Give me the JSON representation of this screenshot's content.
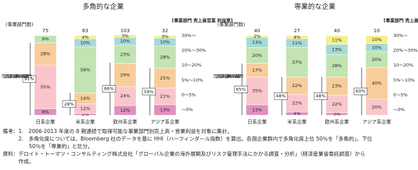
{
  "charts": [
    {
      "type": "bar",
      "stacked": true,
      "title": "多角的な企業",
      "ylabel": "(事業部門数)",
      "legend_title": "[事業部門 売上高営業 利益率]",
      "annotation": "売上高営業利益率 10% 未満の事業部門",
      "categories": [
        "日系企業",
        "米系企業",
        "欧州系企業",
        "アジア系企業"
      ],
      "counts": [
        75,
        83,
        103,
        32
      ],
      "ylim": [
        0,
        100
      ],
      "bracket": {
        "values": [
          91,
          28,
          66,
          59
        ],
        "value_labels": [
          "91%",
          "28%",
          "66%",
          "59%"
        ]
      },
      "series": [
        {
          "name": "〜0%",
          "color": "#df8fc0",
          "values": [
            8,
            2,
            12,
            13
          ],
          "value_labels": [
            "8%",
            "2%",
            "12%",
            "13%"
          ]
        },
        {
          "name": "0〜5%",
          "color": "#f8c6cc",
          "values": [
            55,
            12,
            24,
            21
          ],
          "value_labels": [
            "55%",
            "12%",
            "24%",
            "21%"
          ]
        },
        {
          "name": "5%〜10%",
          "color": "#f8cd9c",
          "values": [
            28,
            14,
            29,
            25
          ],
          "value_labels": [
            "28%",
            "14%",
            "29%",
            "25%"
          ]
        },
        {
          "name": "10〜20%",
          "color": "#c2e3b2",
          "values": [
            9,
            58,
            23,
            28
          ],
          "value_labels": [
            "9%",
            "58%",
            "23%",
            "28%"
          ]
        },
        {
          "name": "20%〜30%",
          "color": "#a8dad4",
          "values": [
            0,
            10,
            10,
            10
          ],
          "value_labels": [
            "0%",
            "10%",
            "10%",
            "10%"
          ]
        },
        {
          "name": "30%〜",
          "color": "#f5ef8a",
          "values": [
            0,
            4,
            3,
            3
          ],
          "value_labels": [
            "0%",
            "4%",
            "3%",
            "3%"
          ]
        }
      ]
    },
    {
      "type": "bar",
      "stacked": true,
      "title": "専業的な企業",
      "ylabel": "(事業部門数)",
      "legend_title": "[事業部門 売上高営業 利益率]",
      "annotation": "売上高営業利益率 10% 未満の事業部門",
      "categories": [
        "日系企業",
        "米系企業",
        "欧州系企業",
        "アジア系企業"
      ],
      "counts": [
        40,
        27,
        40,
        10
      ],
      "ylim": [
        0,
        100
      ],
      "bracket": {
        "values": [
          65,
          48,
          48,
          60
        ],
        "value_labels": [
          "65%",
          "48%",
          "48%",
          "60%"
        ]
      },
      "series": [
        {
          "name": "〜0%",
          "color": "#df8fc0",
          "values": [
            13,
            4,
            3,
            0
          ],
          "value_labels": [
            "13%",
            "4%",
            "3%",
            "0%"
          ]
        },
        {
          "name": "0〜5%",
          "color": "#f8c6cc",
          "values": [
            35,
            22,
            22,
            20
          ],
          "value_labels": [
            "35%",
            "22%",
            "22%",
            "20%"
          ]
        },
        {
          "name": "5%〜10%",
          "color": "#f8cd9c",
          "values": [
            17,
            22,
            23,
            40
          ],
          "value_labels": [
            "17%",
            "22%",
            "23%",
            "40%"
          ]
        },
        {
          "name": "10〜20%",
          "color": "#c2e3b2",
          "values": [
            20,
            37,
            28,
            20
          ],
          "value_labels": [
            "20%",
            "37%",
            "28%",
            "20%"
          ]
        },
        {
          "name": "20%〜30%",
          "color": "#a8dad4",
          "values": [
            13,
            11,
            13,
            10
          ],
          "value_labels": [
            "13%",
            "11%",
            "13%",
            "10%"
          ]
        },
        {
          "name": "30%〜",
          "color": "#f5ef8a",
          "values": [
            2,
            4,
            11,
            10
          ],
          "value_labels": [
            "2%",
            "4%",
            "11%",
            "10%"
          ]
        }
      ]
    }
  ],
  "notes": [
    "備考：1.　2006-2013 年度の 8 期連続で取得可能な事業部門別売上高・営業利益を対象に集計。",
    "　　　2.　多角化度については、Bloomberg 社のデータを基に HHI（ハーフィンダール指数）を算出。各国企業群内で多角化度上位 50％を「多角的」、下位",
    "　　　　　50％を「専業的」と区分。",
    "資料：デロイト・トーマツ・コンサルティング株式会社「グローバル企業の海外展開及びリスク管理手法にかかる調査・分析」（経済産業省委託調査）から",
    "　　　作成。"
  ]
}
